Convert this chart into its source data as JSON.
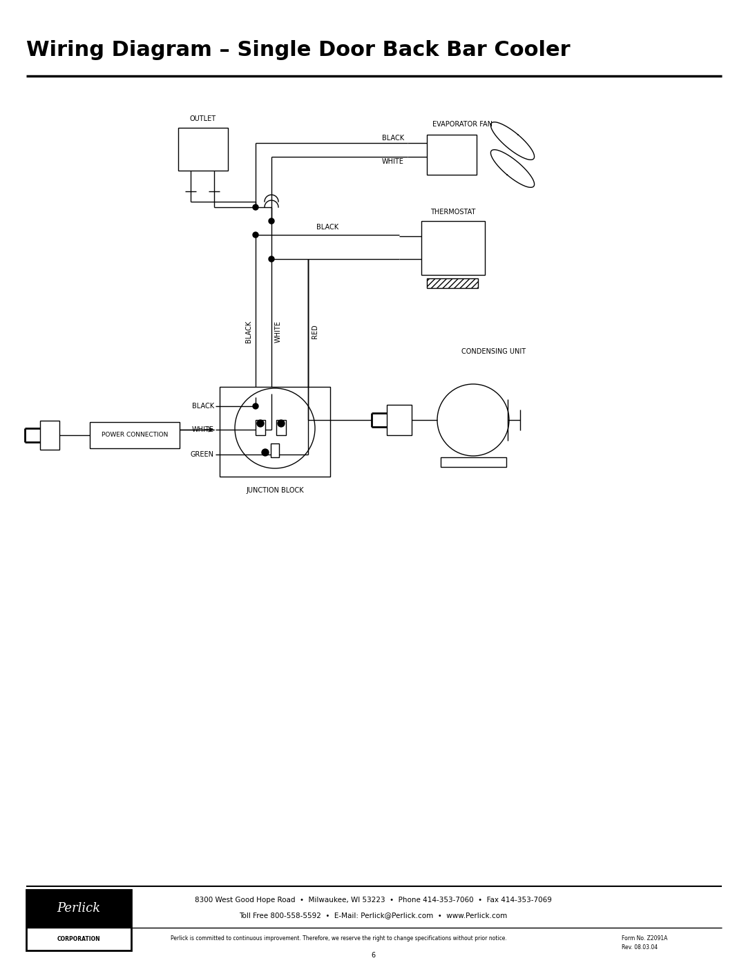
{
  "title": "Wiring Diagram – Single Door Back Bar Cooler",
  "footer_line1": "8300 West Good Hope Road  •  Milwaukee, WI 53223  •  Phone 414-353-7060  •  Fax 414-353-7069",
  "footer_line2": "Toll Free 800-558-5592  •  E-Mail: Perlick@Perlick.com  •  www.Perlick.com",
  "footer_disclaimer": "Perlick is committed to continuous improvement. Therefore, we reserve the right to change specifications without prior notice.",
  "footer_form": "Form No. Z2091A",
  "footer_rev": "Rev. 08.03.04",
  "footer_page": "6",
  "bg_color": "#ffffff",
  "lc": "#000000",
  "title_fontsize": 22
}
